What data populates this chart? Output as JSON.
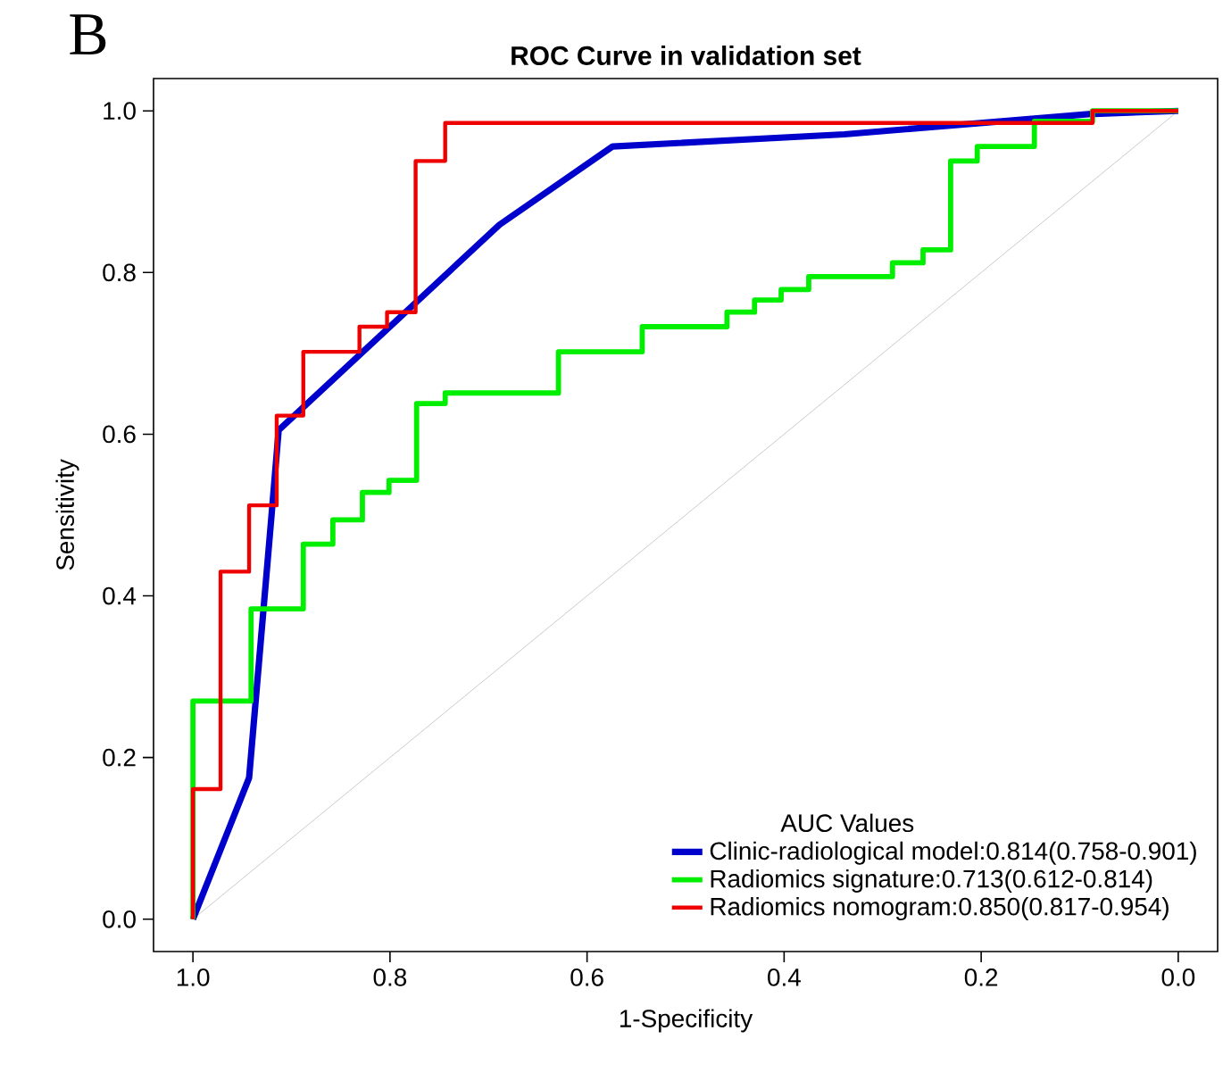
{
  "chart_data": {
    "type": "line",
    "title": "ROC Curve in validation set",
    "xlabel": "1-Specificity",
    "ylabel": "Sensitivity",
    "legend_title": "AUC Values",
    "legend": "bottom right",
    "annotations": [
      "B"
    ],
    "xlim": [
      1.04,
      -0.04
    ],
    "ylim": [
      -0.04,
      1.04
    ],
    "xticks": [
      {
        "value": 1,
        "label": "1.0"
      },
      {
        "value": 0.8,
        "label": "0.8"
      },
      {
        "value": 0.6,
        "label": "0.6"
      },
      {
        "value": 0.4,
        "label": "0.4"
      },
      {
        "value": 0.2,
        "label": "0.2"
      },
      {
        "value": 0,
        "label": "0.0"
      }
    ],
    "yticks": [
      {
        "value": 0,
        "label": "0.0"
      },
      {
        "value": 0.2,
        "label": "0.2"
      },
      {
        "value": 0.4,
        "label": "0.4"
      },
      {
        "value": 0.6,
        "label": "0.6"
      },
      {
        "value": 0.8,
        "label": "0.8"
      },
      {
        "value": 1,
        "label": "1.0"
      }
    ],
    "grid": false,
    "marker": "none",
    "series": [
      {
        "color": "#bebebe",
        "x": [
          1,
          0
        ],
        "values": [
          0,
          1
        ]
      },
      {
        "name": "Clinic-radiological model:0.814(0.758-0.901)",
        "color": "#0000cd",
        "x": [
          1,
          0.943,
          0.92,
          0.913,
          0.689,
          0.574,
          0.339,
          0.091,
          0
        ],
        "values": [
          0,
          0.175,
          0.503,
          0.605,
          0.859,
          0.956,
          0.971,
          0.996,
          1
        ]
      },
      {
        "name": "Radiomics signature:0.713(0.612-0.814)",
        "color": "#00ee00",
        "x": [
          1,
          1,
          0.941,
          0.941,
          0.888,
          0.888,
          0.858,
          0.858,
          0.828,
          0.828,
          0.801,
          0.801,
          0.773,
          0.773,
          0.744,
          0.744,
          0.629,
          0.629,
          0.544,
          0.544,
          0.458,
          0.458,
          0.43,
          0.43,
          0.403,
          0.403,
          0.375,
          0.375,
          0.29,
          0.29,
          0.259,
          0.259,
          0.231,
          0.231,
          0.204,
          0.204,
          0.146,
          0.146,
          0.087,
          0.087,
          0
        ],
        "values": [
          0,
          0.27,
          0.27,
          0.384,
          0.384,
          0.464,
          0.464,
          0.494,
          0.494,
          0.528,
          0.528,
          0.543,
          0.543,
          0.638,
          0.638,
          0.651,
          0.651,
          0.702,
          0.702,
          0.733,
          0.733,
          0.751,
          0.751,
          0.766,
          0.766,
          0.779,
          0.779,
          0.795,
          0.795,
          0.812,
          0.812,
          0.828,
          0.828,
          0.938,
          0.938,
          0.956,
          0.956,
          0.987,
          0.987,
          1,
          1
        ]
      },
      {
        "name": "Radiomics nomogram:0.850(0.817-0.954)",
        "color": "#ee0000",
        "x": [
          1,
          1,
          0.972,
          0.972,
          0.943,
          0.943,
          0.915,
          0.915,
          0.888,
          0.888,
          0.831,
          0.831,
          0.803,
          0.803,
          0.774,
          0.774,
          0.744,
          0.744,
          0.087,
          0.087,
          0
        ],
        "values": [
          0,
          0.161,
          0.161,
          0.43,
          0.43,
          0.512,
          0.512,
          0.623,
          0.623,
          0.702,
          0.702,
          0.733,
          0.733,
          0.751,
          0.751,
          0.938,
          0.938,
          0.985,
          0.985,
          1,
          1
        ]
      }
    ]
  }
}
